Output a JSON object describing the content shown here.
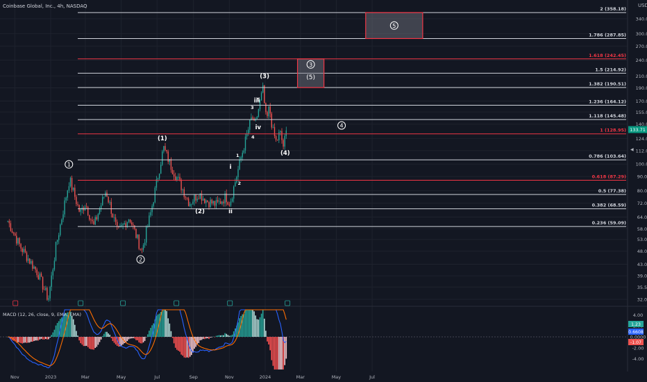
{
  "header": {
    "symbol_title": "Coinbase Global, Inc., 4h, NASDAQ",
    "currency": "USD"
  },
  "colors": {
    "background": "#131722",
    "grid": "#1e222d",
    "up": "#26a69a",
    "down": "#ef5350",
    "fib_line": "#d1d4dc",
    "fib_red": "#f23645",
    "text": "#d1d4dc",
    "axis_text": "#b2b5be",
    "macd": "#2962ff",
    "signal": "#ff6d00",
    "price_badge": "#089981"
  },
  "chart_data": [
    {
      "type": "candlestick",
      "title": "Coinbase Global, Inc., 4h, NASDAQ",
      "y_axis": {
        "scale": "log",
        "unit": "USD",
        "ticks": [
          32,
          35.5,
          39,
          43,
          48,
          53,
          58,
          64,
          72,
          80,
          90,
          100,
          112,
          124,
          140,
          155,
          170,
          190,
          210,
          240,
          270,
          300,
          340
        ]
      },
      "x_axis": {
        "ticks": [
          "Nov",
          "2023",
          "Mar",
          "May",
          "Jul",
          "Sep",
          "Nov",
          "2024",
          "Mar",
          "May",
          "Jul"
        ]
      },
      "last_price": 133.71,
      "price_path": [
        {
          "x": "2022-10-20",
          "y": 62
        },
        {
          "x": "2022-11-10",
          "y": 50
        },
        {
          "x": "2022-12-10",
          "y": 40
        },
        {
          "x": "2022-12-28",
          "y": 32
        },
        {
          "x": "2023-01-10",
          "y": 50
        },
        {
          "x": "2023-02-02",
          "y": 88
        },
        {
          "x": "2023-02-20",
          "y": 66
        },
        {
          "x": "2023-03-01",
          "y": 72
        },
        {
          "x": "2023-03-15",
          "y": 59
        },
        {
          "x": "2023-04-05",
          "y": 80
        },
        {
          "x": "2023-04-25",
          "y": 56
        },
        {
          "x": "2023-05-15",
          "y": 64
        },
        {
          "x": "2023-06-05",
          "y": 48
        },
        {
          "x": "2023-06-20",
          "y": 66
        },
        {
          "x": "2023-07-12",
          "y": 115
        },
        {
          "x": "2023-07-25",
          "y": 98
        },
        {
          "x": "2023-08-10",
          "y": 84
        },
        {
          "x": "2023-08-25",
          "y": 72
        },
        {
          "x": "2023-09-10",
          "y": 78
        },
        {
          "x": "2023-09-25",
          "y": 73
        },
        {
          "x": "2023-10-11",
          "y": 71
        },
        {
          "x": "2023-10-26",
          "y": 76
        },
        {
          "x": "2023-11-02",
          "y": 72
        },
        {
          "x": "2023-11-12",
          "y": 88
        },
        {
          "x": "2023-11-22",
          "y": 108
        },
        {
          "x": "2023-12-05",
          "y": 138
        },
        {
          "x": "2023-12-10",
          "y": 150
        },
        {
          "x": "2023-12-14",
          "y": 136
        },
        {
          "x": "2023-12-21",
          "y": 160
        },
        {
          "x": "2023-12-28",
          "y": 188
        },
        {
          "x": "2024-01-03",
          "y": 142
        },
        {
          "x": "2024-01-08",
          "y": 162
        },
        {
          "x": "2024-01-14",
          "y": 132
        },
        {
          "x": "2024-01-20",
          "y": 120
        },
        {
          "x": "2024-01-26",
          "y": 131
        },
        {
          "x": "2024-02-01",
          "y": 116
        },
        {
          "x": "2024-02-07",
          "y": 134
        }
      ],
      "fib_levels": [
        {
          "label": "0.236 (59.09)",
          "value": 59.09,
          "color": "#d1d4dc"
        },
        {
          "label": "0.382 (68.59)",
          "value": 68.59,
          "color": "#d1d4dc"
        },
        {
          "label": "0.5 (77.38)",
          "value": 77.38,
          "color": "#d1d4dc"
        },
        {
          "label": "0.618 (87.29)",
          "value": 87.29,
          "color": "#f23645"
        },
        {
          "label": "0.786 (103.64)",
          "value": 103.64,
          "color": "#d1d4dc"
        },
        {
          "label": "1 (128.95)",
          "value": 128.95,
          "color": "#f23645"
        },
        {
          "label": "1.118 (145.48)",
          "value": 145.48,
          "color": "#d1d4dc"
        },
        {
          "label": "1.236 (164.12)",
          "value": 164.12,
          "color": "#d1d4dc"
        },
        {
          "label": "1.382 (190.51)",
          "value": 190.51,
          "color": "#d1d4dc"
        },
        {
          "label": "1.5 (214.92)",
          "value": 214.92,
          "color": "#d1d4dc"
        },
        {
          "label": "1.618 (242.45)",
          "value": 242.45,
          "color": "#f23645"
        },
        {
          "label": "1.786 (287.85)",
          "value": 287.85,
          "color": "#d1d4dc"
        },
        {
          "label": "2 (358.18)",
          "value": 358.18,
          "color": "#d1d4dc"
        }
      ],
      "target_boxes": [
        {
          "x_start": "2024-02-25",
          "x_end": "2024-04-10",
          "y_low": 190.51,
          "y_high": 242.45,
          "labels": [
            "3",
            "(5)"
          ]
        },
        {
          "x_start": "2024-06-20",
          "x_end": "2024-09-25",
          "y_low": 287.85,
          "y_high": 358.18,
          "labels": [
            "5"
          ]
        }
      ],
      "wave_labels": [
        {
          "text": "1",
          "circled": true,
          "x": "2023-02-01",
          "y": 98
        },
        {
          "text": "2",
          "circled": true,
          "x": "2023-06-03",
          "y": 44
        },
        {
          "text": "(1)",
          "circled": false,
          "x": "2023-07-10",
          "y": 122
        },
        {
          "text": "(2)",
          "circled": false,
          "x": "2023-09-12",
          "y": 66
        },
        {
          "text": "i",
          "circled": false,
          "x": "2023-11-03",
          "y": 96
        },
        {
          "text": "ii",
          "circled": false,
          "x": "2023-11-03",
          "y": 66
        },
        {
          "text": "1",
          "circled": false,
          "x": "2023-11-15",
          "y": 106
        },
        {
          "text": "2",
          "circled": false,
          "x": "2023-11-18",
          "y": 84
        },
        {
          "text": "3",
          "circled": false,
          "x": "2023-12-10",
          "y": 159
        },
        {
          "text": "4",
          "circled": false,
          "x": "2023-12-11",
          "y": 124
        },
        {
          "text": "iii",
          "circled": false,
          "x": "2023-12-18",
          "y": 168
        },
        {
          "text": "5",
          "circled": false,
          "x": "2023-12-20",
          "y": 170
        },
        {
          "text": "iv",
          "circled": false,
          "x": "2023-12-20",
          "y": 134
        },
        {
          "text": "(3)",
          "circled": false,
          "x": "2023-12-31",
          "y": 206
        },
        {
          "text": "(4)",
          "circled": false,
          "x": "2024-02-04",
          "y": 108
        },
        {
          "text": "4",
          "circled": true,
          "x": "2024-05-10",
          "y": 136
        }
      ],
      "events": [
        {
          "x": "2022-11-02",
          "type": "earnings"
        },
        {
          "x": "2023-02-21",
          "type": "earnings"
        },
        {
          "x": "2023-05-04",
          "type": "earnings"
        },
        {
          "x": "2023-08-03",
          "type": "earnings"
        },
        {
          "x": "2023-11-02",
          "type": "earnings"
        },
        {
          "x": "2024-02-08",
          "type": "earnings"
        }
      ]
    },
    {
      "type": "line",
      "title": "MACD (12, 26, close, 9, EMA, EMA)",
      "y_ticks": [
        4.0,
        2.0,
        0.0,
        -2.0,
        -4.0
      ],
      "badges": [
        {
          "value": "1.23",
          "color": "#26a69a"
        },
        {
          "value": "0.6608",
          "color": "#2962ff"
        },
        {
          "value": "-1.07",
          "color": "#ef5350"
        }
      ]
    }
  ]
}
